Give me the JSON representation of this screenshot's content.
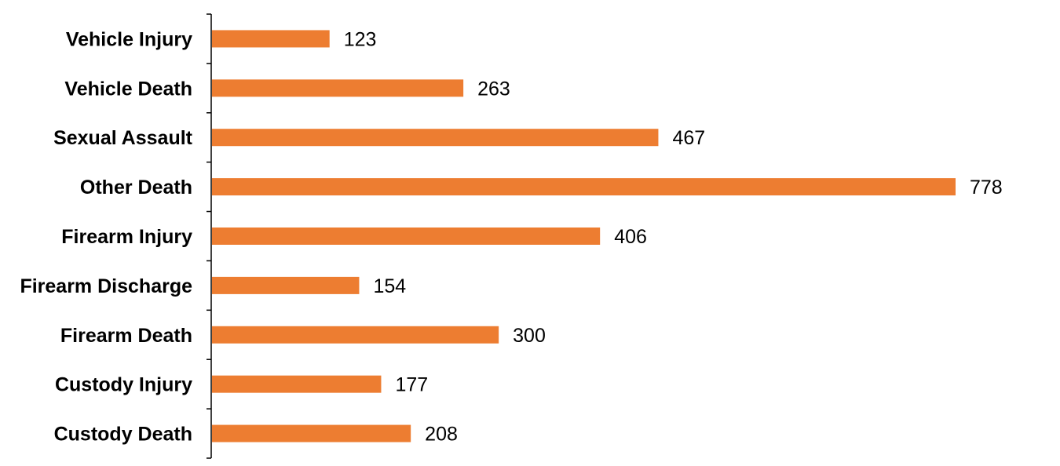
{
  "chart_data": {
    "type": "bar",
    "orientation": "horizontal",
    "categories": [
      "Vehicle Injury",
      "Vehicle Death",
      "Sexual Assault",
      "Other Death",
      "Firearm Injury",
      "Firearm Discharge",
      "Firearm Death",
      "Custody Injury",
      "Custody Death"
    ],
    "values": [
      123,
      263,
      467,
      778,
      406,
      154,
      300,
      177,
      208
    ],
    "data_labels": [
      "123",
      "263",
      "467",
      "778",
      "406",
      "154",
      "300",
      "177",
      "208"
    ],
    "bar_color": "#ED7D31",
    "xlim": [
      0,
      850
    ],
    "grid": false,
    "legend": "none"
  }
}
